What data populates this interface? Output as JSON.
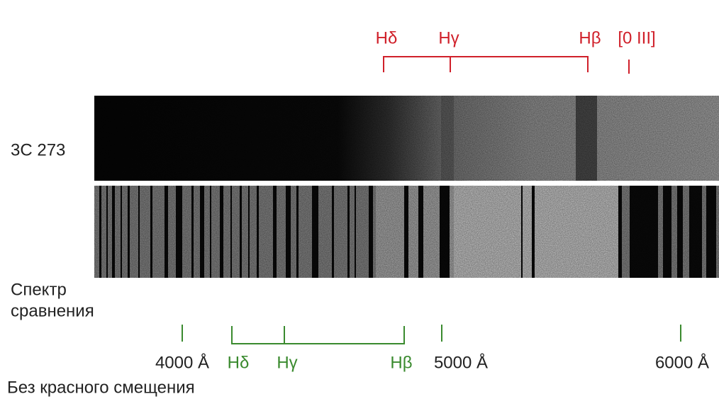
{
  "redshifted_labels": [
    "Hδ",
    "Hγ",
    "Hβ",
    "[0 III]"
  ],
  "object_label": "3C 273",
  "comparison_label": [
    "Спектр",
    "сравнения"
  ],
  "rest_labels": [
    "Hδ",
    "Hγ",
    "Hβ"
  ],
  "wavelength_labels": [
    "4000 Å",
    "5000 Å",
    "6000 Å"
  ],
  "footer": "Без красного смещения"
}
